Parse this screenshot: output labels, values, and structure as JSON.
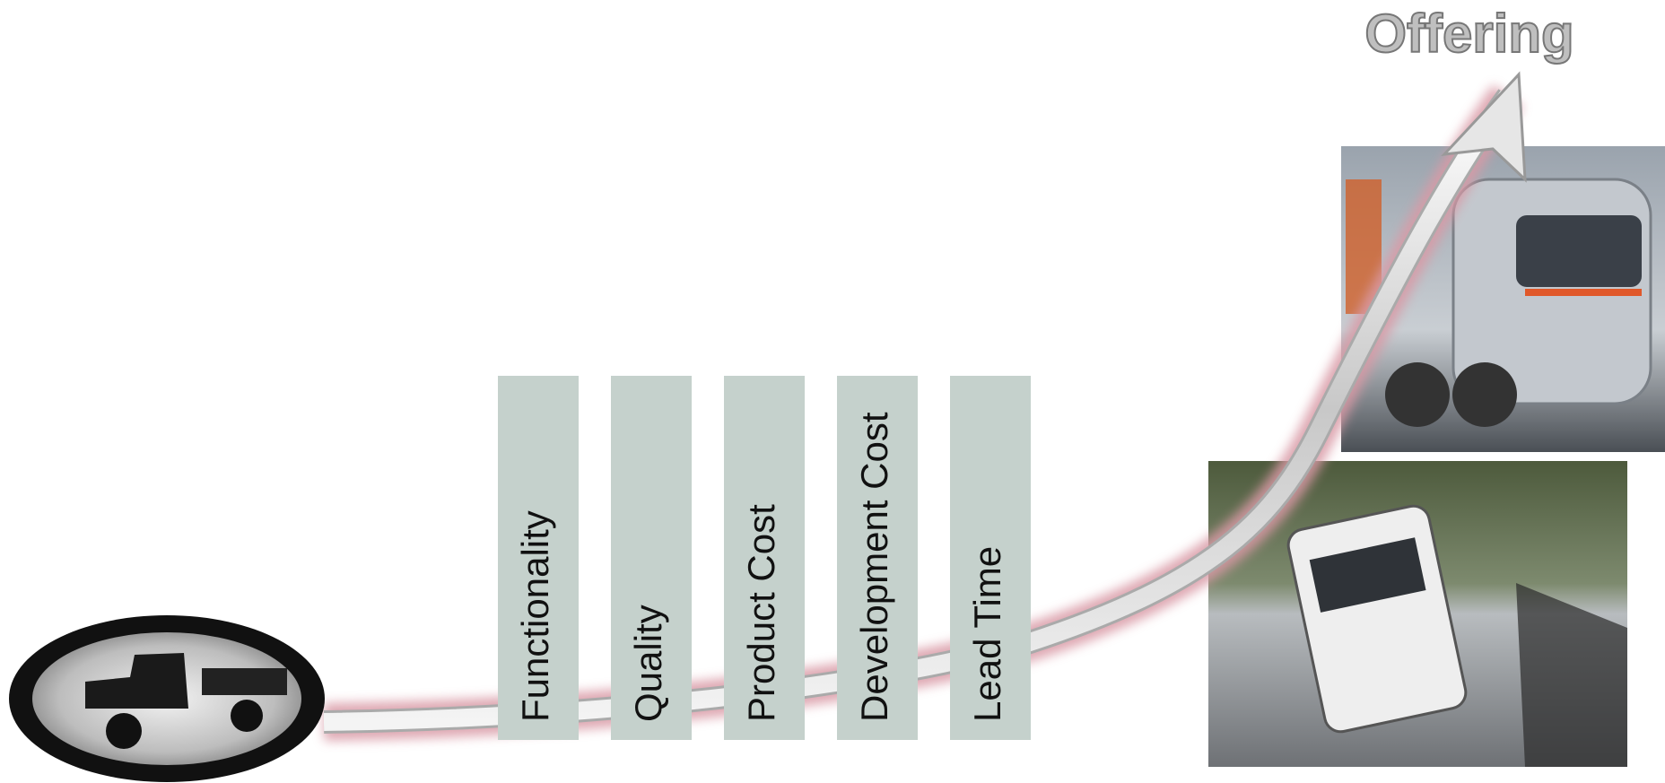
{
  "title": "Offering",
  "factors": [
    "Functionality",
    "Quality",
    "Product Cost",
    "Development Cost",
    "Lead Time"
  ]
}
